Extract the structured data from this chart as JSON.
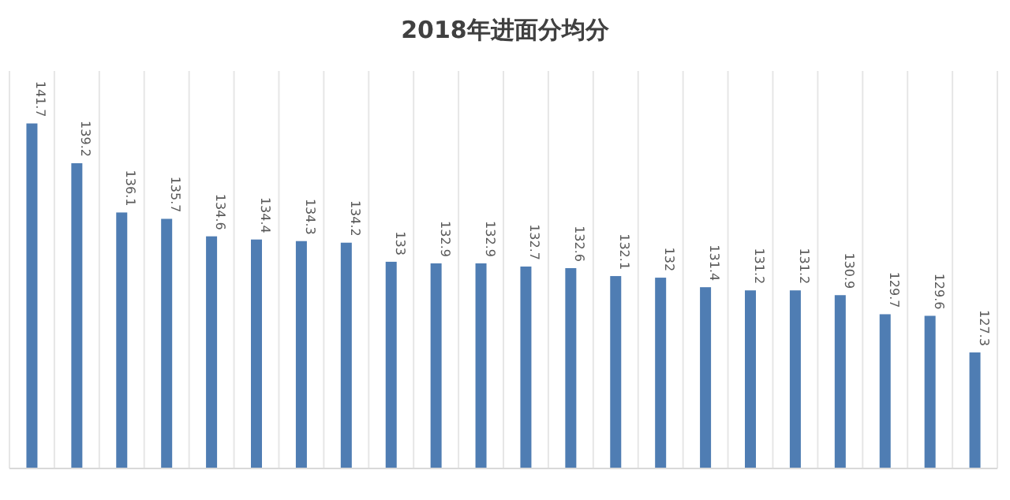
{
  "chart_data": {
    "type": "bar",
    "title": "2018年进面分均分",
    "categories": [
      null,
      null,
      null,
      null,
      null,
      null,
      null,
      null,
      null,
      null,
      null,
      null,
      null,
      null,
      null,
      null,
      null,
      null,
      null,
      null,
      null,
      null
    ],
    "values": [
      141.7,
      139.2,
      136.1,
      135.7,
      134.6,
      134.4,
      134.3,
      134.2,
      133,
      132.9,
      132.9,
      132.7,
      132.6,
      132.1,
      132,
      131.4,
      131.2,
      131.2,
      130.9,
      129.7,
      129.6,
      127.3
    ],
    "color": "#4f7db3",
    "ylim": [
      120,
      145
    ],
    "grid": "x",
    "data_labels": true
  }
}
